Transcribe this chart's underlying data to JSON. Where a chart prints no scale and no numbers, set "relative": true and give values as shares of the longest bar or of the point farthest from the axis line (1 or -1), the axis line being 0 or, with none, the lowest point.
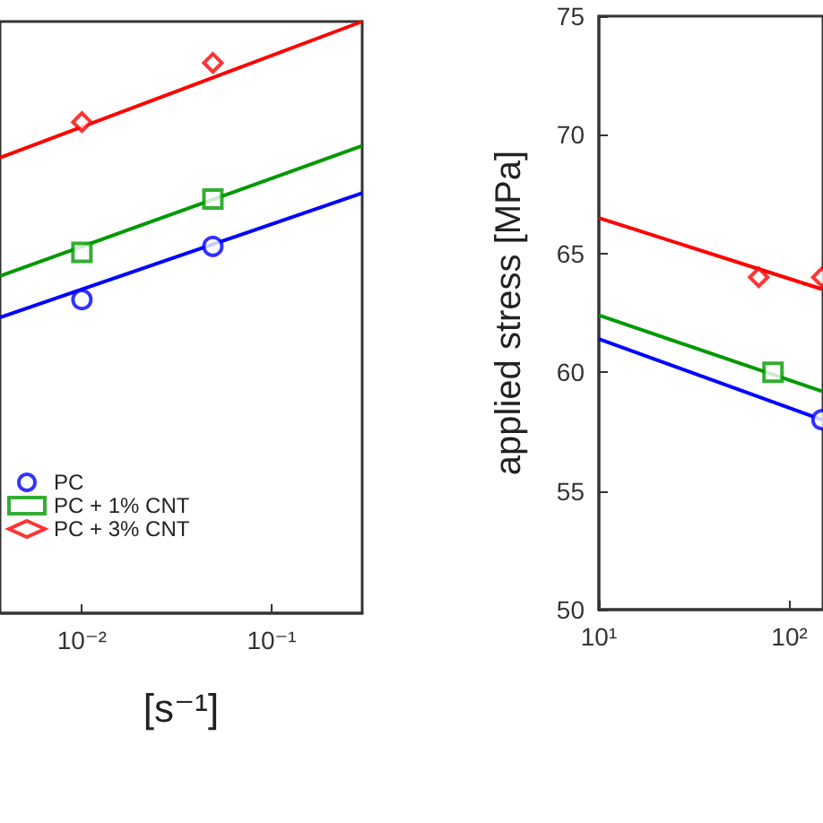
{
  "chart_data": [
    {
      "type": "line",
      "relative": true,
      "log": "x",
      "xlabel": "[s⁻¹]",
      "xlim": [
        0.0037,
        0.3
      ],
      "xticks": [
        {
          "value": 0.01,
          "label": "10⁻²"
        },
        {
          "value": 0.1,
          "label": "10⁻¹"
        }
      ],
      "legend": "bottom left",
      "grid": false,
      "tick_labels": "x",
      "series": [
        {
          "name": "PC",
          "type": "scatter",
          "marker": "circle",
          "color": "#0000ff",
          "x": [
            0.01,
            0.049
          ],
          "values": [
            0.53,
            0.62
          ]
        },
        {
          "name": "PC + 1% CNT",
          "type": "scatter",
          "marker": "square",
          "color": "#009900",
          "x": [
            0.01,
            0.049
          ],
          "values": [
            0.61,
            0.7
          ]
        },
        {
          "name": "PC + 3% CNT",
          "type": "scatter",
          "marker": "diamond",
          "color": "#ff0000",
          "x": [
            0.01,
            0.049
          ],
          "values": [
            0.83,
            0.93
          ]
        },
        {
          "type": "line",
          "marker": "none",
          "color": "#0000ff",
          "x": [
            0.0037,
            0.3
          ],
          "values": [
            0.5,
            0.71
          ]
        },
        {
          "type": "line",
          "marker": "none",
          "color": "#009900",
          "x": [
            0.0037,
            0.3
          ],
          "values": [
            0.57,
            0.79
          ]
        },
        {
          "type": "line",
          "marker": "none",
          "color": "#ff0000",
          "x": [
            0.0037,
            0.3
          ],
          "values": [
            0.77,
            1.0
          ]
        }
      ]
    },
    {
      "type": "line",
      "log": "x",
      "ylabel": "applied stress [MPa]",
      "xlim": [
        10,
        150
      ],
      "ylim": [
        50,
        75
      ],
      "xticks": [
        {
          "value": 10,
          "label": "10¹"
        },
        {
          "value": 100,
          "label": "10²"
        }
      ],
      "yticks": [
        50,
        55,
        60,
        65,
        70,
        75
      ],
      "legend": false,
      "grid": false,
      "series": [
        {
          "type": "scatter",
          "marker": "circle",
          "color": "#0000ff",
          "x": [
            148
          ],
          "values": [
            58.0
          ]
        },
        {
          "type": "scatter",
          "marker": "square",
          "color": "#009900",
          "x": [
            82
          ],
          "values": [
            60.0
          ]
        },
        {
          "type": "scatter",
          "marker": "diamond",
          "color": "#ff0000",
          "x": [
            69,
            148
          ],
          "values": [
            64.0,
            64.0
          ]
        },
        {
          "type": "line",
          "marker": "none",
          "color": "#0000ff",
          "x": [
            10,
            148
          ],
          "values": [
            61.4,
            58.0
          ]
        },
        {
          "type": "line",
          "marker": "none",
          "color": "#009900",
          "x": [
            10,
            148
          ],
          "values": [
            62.4,
            59.2
          ]
        },
        {
          "type": "line",
          "marker": "none",
          "color": "#ff0000",
          "x": [
            10,
            148
          ],
          "values": [
            66.5,
            63.5
          ]
        }
      ]
    }
  ]
}
